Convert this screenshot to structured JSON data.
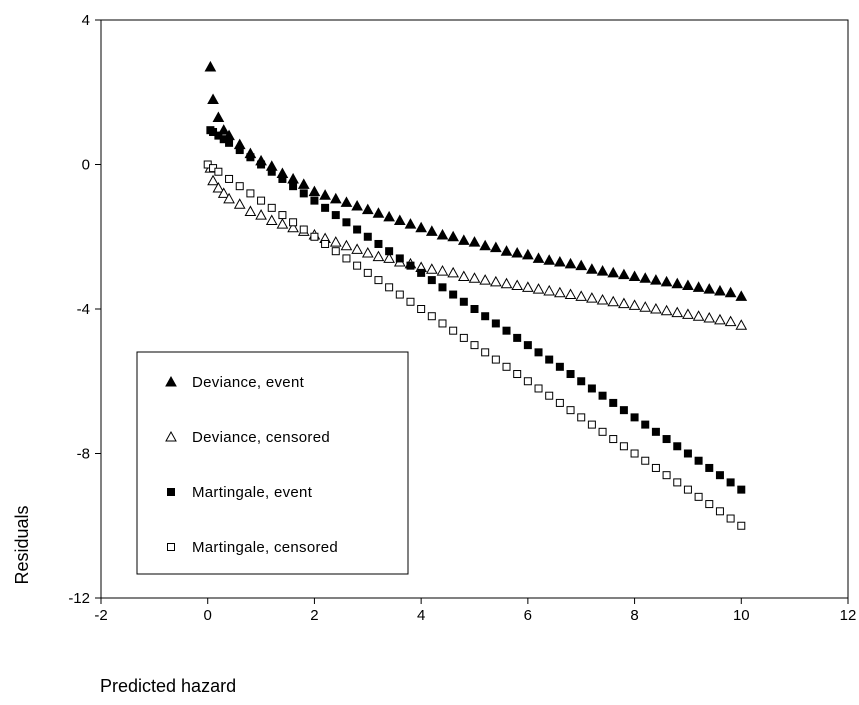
{
  "chart_data": {
    "type": "scatter",
    "title": "",
    "xlabel": "Predicted hazard",
    "ylabel": "Residuals",
    "xlim": [
      -2,
      12
    ],
    "ylim": [
      -12,
      4
    ],
    "xticks": [
      -2,
      0,
      2,
      4,
      6,
      8,
      10,
      12
    ],
    "yticks": [
      4,
      0,
      -4,
      -8,
      -12
    ],
    "grid": false,
    "legend_position": "bottom-left",
    "series": [
      {
        "name": "Deviance, event",
        "marker": "triangle-filled",
        "x": [
          0.05,
          0.1,
          0.2,
          0.3,
          0.4,
          0.6,
          0.8,
          1.0,
          1.2,
          1.4,
          1.6,
          1.8,
          2.0,
          2.2,
          2.4,
          2.6,
          2.8,
          3.0,
          3.2,
          3.4,
          3.6,
          3.8,
          4.0,
          4.2,
          4.4,
          4.6,
          4.8,
          5.0,
          5.2,
          5.4,
          5.6,
          5.8,
          6.0,
          6.2,
          6.4,
          6.6,
          6.8,
          7.0,
          7.2,
          7.4,
          7.6,
          7.8,
          8.0,
          8.2,
          8.4,
          8.6,
          8.8,
          9.0,
          9.2,
          9.4,
          9.6,
          9.8,
          10.0
        ],
        "y": [
          2.7,
          1.8,
          1.3,
          0.95,
          0.8,
          0.55,
          0.3,
          0.1,
          -0.05,
          -0.25,
          -0.4,
          -0.55,
          -0.75,
          -0.85,
          -0.95,
          -1.05,
          -1.15,
          -1.25,
          -1.35,
          -1.45,
          -1.55,
          -1.65,
          -1.75,
          -1.85,
          -1.95,
          -2.0,
          -2.1,
          -2.15,
          -2.25,
          -2.3,
          -2.4,
          -2.45,
          -2.5,
          -2.6,
          -2.65,
          -2.7,
          -2.75,
          -2.8,
          -2.9,
          -2.95,
          -3.0,
          -3.05,
          -3.1,
          -3.15,
          -3.2,
          -3.25,
          -3.3,
          -3.35,
          -3.4,
          -3.45,
          -3.5,
          -3.55,
          -3.65
        ]
      },
      {
        "name": "Deviance, censored",
        "marker": "triangle-open",
        "x": [
          0.05,
          0.1,
          0.2,
          0.3,
          0.4,
          0.6,
          0.8,
          1.0,
          1.2,
          1.4,
          1.6,
          1.8,
          2.0,
          2.2,
          2.4,
          2.6,
          2.8,
          3.0,
          3.2,
          3.4,
          3.6,
          3.8,
          4.0,
          4.2,
          4.4,
          4.6,
          4.8,
          5.0,
          5.2,
          5.4,
          5.6,
          5.8,
          6.0,
          6.2,
          6.4,
          6.6,
          6.8,
          7.0,
          7.2,
          7.4,
          7.6,
          7.8,
          8.0,
          8.2,
          8.4,
          8.6,
          8.8,
          9.0,
          9.2,
          9.4,
          9.6,
          9.8,
          10.0
        ],
        "y": [
          -0.1,
          -0.45,
          -0.65,
          -0.8,
          -0.95,
          -1.1,
          -1.3,
          -1.4,
          -1.55,
          -1.65,
          -1.75,
          -1.85,
          -1.95,
          -2.05,
          -2.15,
          -2.25,
          -2.35,
          -2.45,
          -2.55,
          -2.6,
          -2.7,
          -2.75,
          -2.85,
          -2.9,
          -2.95,
          -3.0,
          -3.1,
          -3.15,
          -3.2,
          -3.25,
          -3.3,
          -3.35,
          -3.4,
          -3.45,
          -3.5,
          -3.55,
          -3.6,
          -3.65,
          -3.7,
          -3.75,
          -3.8,
          -3.85,
          -3.9,
          -3.95,
          -4.0,
          -4.05,
          -4.1,
          -4.15,
          -4.2,
          -4.25,
          -4.3,
          -4.35,
          -4.45
        ]
      },
      {
        "name": "Martingale, event",
        "marker": "square-filled",
        "x": [
          0.05,
          0.1,
          0.2,
          0.3,
          0.4,
          0.6,
          0.8,
          1.0,
          1.2,
          1.4,
          1.6,
          1.8,
          2.0,
          2.2,
          2.4,
          2.6,
          2.8,
          3.0,
          3.2,
          3.4,
          3.6,
          3.8,
          4.0,
          4.2,
          4.4,
          4.6,
          4.8,
          5.0,
          5.2,
          5.4,
          5.6,
          5.8,
          6.0,
          6.2,
          6.4,
          6.6,
          6.8,
          7.0,
          7.2,
          7.4,
          7.6,
          7.8,
          8.0,
          8.2,
          8.4,
          8.6,
          8.8,
          9.0,
          9.2,
          9.4,
          9.6,
          9.8,
          10.0
        ],
        "y": [
          0.95,
          0.9,
          0.8,
          0.7,
          0.6,
          0.4,
          0.2,
          0.0,
          -0.2,
          -0.4,
          -0.6,
          -0.8,
          -1.0,
          -1.2,
          -1.4,
          -1.6,
          -1.8,
          -2.0,
          -2.2,
          -2.4,
          -2.6,
          -2.8,
          -3.0,
          -3.2,
          -3.4,
          -3.6,
          -3.8,
          -4.0,
          -4.2,
          -4.4,
          -4.6,
          -4.8,
          -5.0,
          -5.2,
          -5.4,
          -5.6,
          -5.8,
          -6.0,
          -6.2,
          -6.4,
          -6.6,
          -6.8,
          -7.0,
          -7.2,
          -7.4,
          -7.6,
          -7.8,
          -8.0,
          -8.2,
          -8.4,
          -8.6,
          -8.8,
          -9.0
        ]
      },
      {
        "name": "Martingale, censored",
        "marker": "square-open",
        "x": [
          0.0,
          0.1,
          0.2,
          0.4,
          0.6,
          0.8,
          1.0,
          1.2,
          1.4,
          1.6,
          1.8,
          2.0,
          2.2,
          2.4,
          2.6,
          2.8,
          3.0,
          3.2,
          3.4,
          3.6,
          3.8,
          4.0,
          4.2,
          4.4,
          4.6,
          4.8,
          5.0,
          5.2,
          5.4,
          5.6,
          5.8,
          6.0,
          6.2,
          6.4,
          6.6,
          6.8,
          7.0,
          7.2,
          7.4,
          7.6,
          7.8,
          8.0,
          8.2,
          8.4,
          8.6,
          8.8,
          9.0,
          9.2,
          9.4,
          9.6,
          9.8,
          10.0
        ],
        "y": [
          0.0,
          -0.1,
          -0.2,
          -0.4,
          -0.6,
          -0.8,
          -1.0,
          -1.2,
          -1.4,
          -1.6,
          -1.8,
          -2.0,
          -2.2,
          -2.4,
          -2.6,
          -2.8,
          -3.0,
          -3.2,
          -3.4,
          -3.6,
          -3.8,
          -4.0,
          -4.2,
          -4.4,
          -4.6,
          -4.8,
          -5.0,
          -5.2,
          -5.4,
          -5.6,
          -5.8,
          -6.0,
          -6.2,
          -6.4,
          -6.6,
          -6.8,
          -7.0,
          -7.2,
          -7.4,
          -7.6,
          -7.8,
          -8.0,
          -8.2,
          -8.4,
          -8.6,
          -8.8,
          -9.0,
          -9.2,
          -9.4,
          -9.6,
          -9.8,
          -10.0
        ]
      }
    ]
  }
}
